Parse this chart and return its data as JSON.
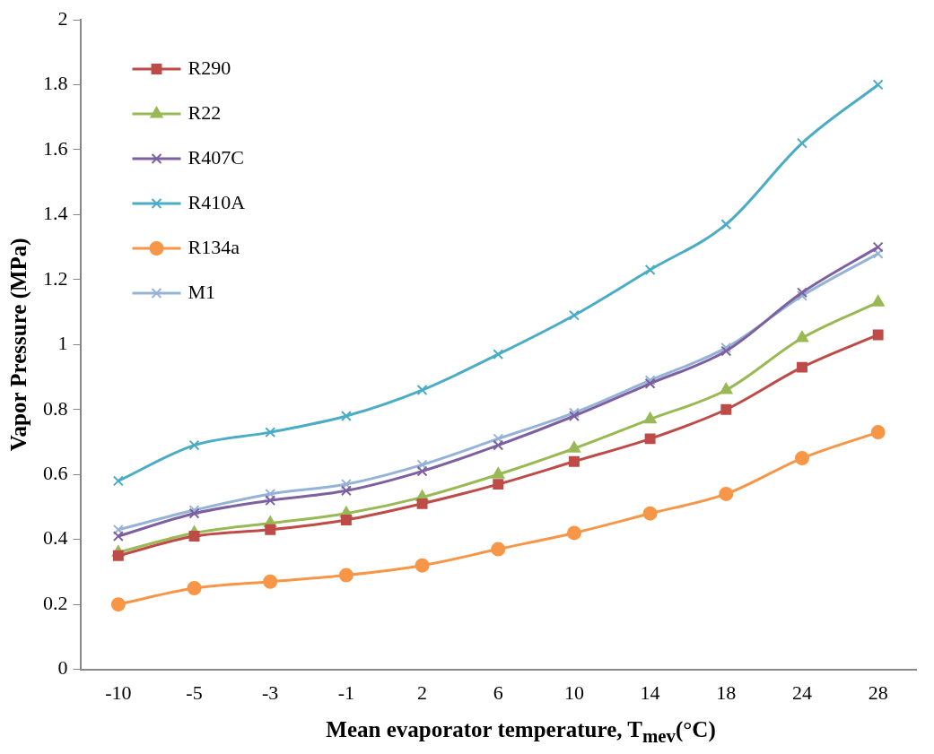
{
  "chart_data": {
    "type": "line",
    "xlabel": "Mean evaporator temperature, T$_{mev}$(°C)",
    "ylabel": "Vapor Pressure (MPa)",
    "categories": [
      "-10",
      "-5",
      "-3",
      "-1",
      "2",
      "6",
      "10",
      "14",
      "18",
      "24",
      "28"
    ],
    "ylim": [
      0,
      2
    ],
    "yticks": [
      0,
      0.2,
      0.4,
      0.6,
      0.8,
      1,
      1.2,
      1.4,
      1.6,
      1.8,
      2
    ],
    "grid": false,
    "legend": "top left",
    "line_style": "solid",
    "series": [
      {
        "name": "R290",
        "color": "#be4b48",
        "marker": "square",
        "values": [
          0.35,
          0.41,
          0.43,
          0.46,
          0.51,
          0.57,
          0.64,
          0.71,
          0.8,
          0.93,
          1.03
        ]
      },
      {
        "name": "R22",
        "color": "#98b954",
        "marker": "triangle",
        "values": [
          0.36,
          0.42,
          0.45,
          0.48,
          0.53,
          0.6,
          0.68,
          0.77,
          0.86,
          1.02,
          1.13
        ]
      },
      {
        "name": "R407C",
        "color": "#7d60a0",
        "marker": "cross",
        "values": [
          0.41,
          0.48,
          0.52,
          0.55,
          0.61,
          0.69,
          0.78,
          0.88,
          0.98,
          1.16,
          1.3
        ]
      },
      {
        "name": "R410A",
        "color": "#4bacc6",
        "marker": "cross",
        "values": [
          0.58,
          0.69,
          0.73,
          0.78,
          0.86,
          0.97,
          1.09,
          1.23,
          1.37,
          1.62,
          1.8
        ]
      },
      {
        "name": "R134a",
        "color": "#f79646",
        "marker": "circle",
        "values": [
          0.2,
          0.25,
          0.27,
          0.29,
          0.32,
          0.37,
          0.42,
          0.48,
          0.54,
          0.65,
          0.73
        ]
      },
      {
        "name": "M1",
        "color": "#95b3d7",
        "marker": "cross",
        "values": [
          0.43,
          0.49,
          0.54,
          0.57,
          0.63,
          0.71,
          0.79,
          0.89,
          0.99,
          1.15,
          1.28
        ]
      }
    ]
  }
}
